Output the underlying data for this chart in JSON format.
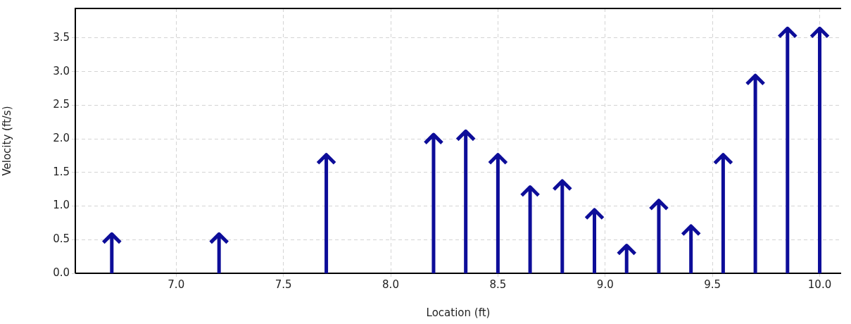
{
  "chart_data": {
    "type": "lollipop",
    "xlabel": "Location (ft)",
    "ylabel": "Velocity (ft/s)",
    "x": [
      6.7,
      7.2,
      7.7,
      8.2,
      8.35,
      8.5,
      8.65,
      8.8,
      8.95,
      9.1,
      9.25,
      9.4,
      9.55,
      9.7,
      9.85,
      10.0
    ],
    "series": [
      {
        "color": "#0d0d99",
        "values": [
          0.52,
          0.52,
          1.7,
          2.0,
          2.05,
          1.7,
          1.22,
          1.31,
          0.88,
          0.35,
          1.02,
          0.64,
          1.7,
          2.88,
          3.58,
          3.58
        ]
      }
    ],
    "xlim": [
      6.53,
      10.1
    ],
    "ylim": [
      0,
      3.94
    ],
    "xticks": [
      {
        "value": 7,
        "label": "7.0"
      },
      {
        "value": 7.5,
        "label": "7.5"
      },
      {
        "value": 8,
        "label": "8.0"
      },
      {
        "value": 8.5,
        "label": "8.5"
      },
      {
        "value": 9,
        "label": "9.0"
      },
      {
        "value": 9.5,
        "label": "9.5"
      },
      {
        "value": 10,
        "label": "10.0"
      }
    ],
    "yticks": [
      {
        "value": 0,
        "label": "0.0"
      },
      {
        "value": 0.5,
        "label": "0.5"
      },
      {
        "value": 1,
        "label": "1.0"
      },
      {
        "value": 1.5,
        "label": "1.5"
      },
      {
        "value": 2,
        "label": "2.0"
      },
      {
        "value": 2.5,
        "label": "2.5"
      },
      {
        "value": 3,
        "label": "3.0"
      },
      {
        "value": 3.5,
        "label": "3.5"
      }
    ],
    "grid": true,
    "legend": false
  }
}
